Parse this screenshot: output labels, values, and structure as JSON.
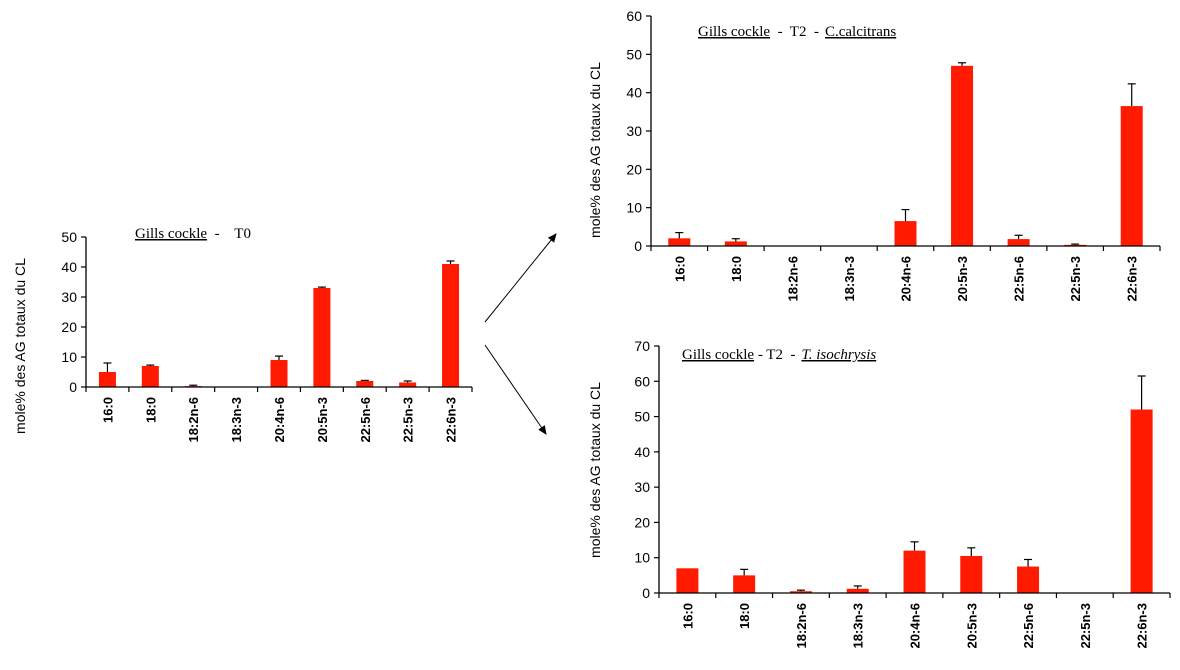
{
  "chart_data": [
    {
      "type": "bar",
      "title_parts": [
        {
          "text": "Gills cockle",
          "underline": true,
          "italic": false
        },
        {
          "text": "  -    T0",
          "underline": false,
          "italic": false
        }
      ],
      "ylabel": "mole% des AG totaux du CL",
      "xlabel": "",
      "categories": [
        "16:0",
        "18:0",
        "18:2n-6",
        "18:3n-3",
        "20:4n-6",
        "20:5n-3",
        "22:5n-6",
        "22:5n-3",
        "22:6n-3"
      ],
      "values": [
        5,
        7,
        0.3,
        0,
        9,
        33,
        2,
        1.5,
        41
      ],
      "errors": [
        3,
        0.3,
        0.3,
        0,
        1.3,
        0.3,
        0.2,
        0.5,
        1
      ],
      "ylim": [
        0,
        50
      ],
      "yticks": [
        0,
        10,
        20,
        30,
        40,
        50
      ],
      "color": "#ff1a00",
      "grid": false
    },
    {
      "type": "bar",
      "title_parts": [
        {
          "text": "Gills cockle",
          "underline": true,
          "italic": false
        },
        {
          "text": "  -  T2  -",
          "underline": false,
          "italic": false
        },
        {
          "text": "C.calcitrans",
          "underline": true,
          "italic": false
        }
      ],
      "ylabel": "mole% des AG totaux du CL",
      "xlabel": "",
      "categories": [
        "16:0",
        "18:0",
        "18:2n-6",
        "18:3n-3",
        "20:4n-6",
        "20:5n-3",
        "22:5n-6",
        "22:5n-3",
        "22:6n-3"
      ],
      "values": [
        2,
        1.2,
        0,
        0,
        6.5,
        47,
        1.8,
        0.3,
        36.5
      ],
      "errors": [
        1.5,
        0.7,
        0,
        0,
        3,
        0.8,
        1,
        0.2,
        5.8
      ],
      "ylim": [
        0,
        60
      ],
      "yticks": [
        0,
        10,
        20,
        30,
        40,
        50,
        60
      ],
      "color": "#ff1a00",
      "grid": false
    },
    {
      "type": "bar",
      "title_parts": [
        {
          "text": "Gills cockle",
          "underline": true,
          "italic": false
        },
        {
          "text": " - T2  -",
          "underline": false,
          "italic": false
        },
        {
          "text": "T. isochrysis",
          "underline": true,
          "italic": true
        }
      ],
      "ylabel": "mole% des AG totaux du CL",
      "xlabel": "",
      "categories": [
        "16:0",
        "18:0",
        "18:2n-6",
        "18:3n-3",
        "20:4n-6",
        "20:5n-3",
        "22:5n-6",
        "22:5n-3",
        "22:6n-3"
      ],
      "values": [
        7,
        5,
        0.5,
        1.2,
        12,
        10.5,
        7.5,
        0,
        52
      ],
      "errors": [
        0,
        1.7,
        0.3,
        0.8,
        2.5,
        2.3,
        2,
        0,
        9.5
      ],
      "ylim": [
        0,
        70
      ],
      "yticks": [
        0,
        10,
        20,
        30,
        40,
        50,
        60,
        70
      ],
      "color": "#ff1a00",
      "grid": false
    }
  ]
}
